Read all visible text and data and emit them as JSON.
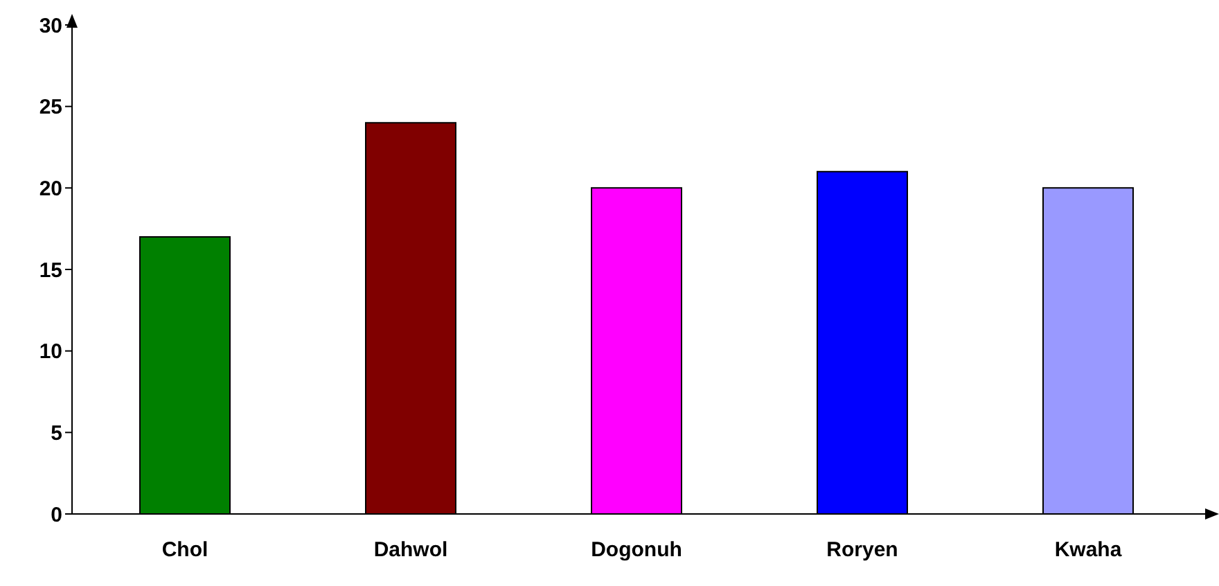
{
  "chart_data": {
    "type": "bar",
    "categories": [
      "Chol",
      "Dahwol",
      "Dogonuh",
      "Roryen",
      "Kwaha"
    ],
    "values": [
      17,
      24,
      20,
      21,
      20
    ],
    "colors": [
      "#008000",
      "#800000",
      "#ff00ff",
      "#0000ff",
      "#9999ff"
    ],
    "ylim": [
      0,
      30
    ],
    "yticks": [
      0,
      5,
      10,
      15,
      20,
      25,
      30
    ],
    "grid": false,
    "legend": false
  }
}
